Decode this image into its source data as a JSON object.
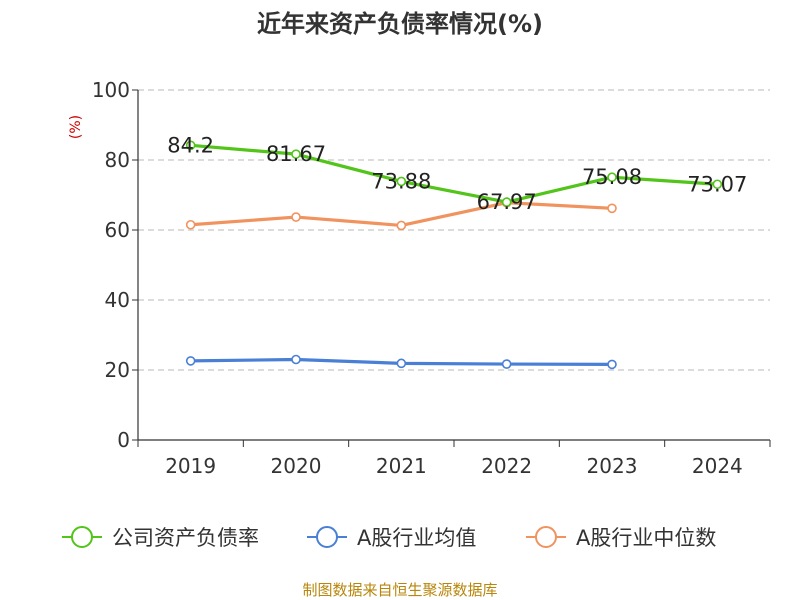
{
  "chart_data": {
    "type": "line",
    "title": "近年来资产负债率情况(%)",
    "ylabel": "(%)",
    "xlabel": "",
    "ylim": [
      0,
      100
    ],
    "yticks": [
      0,
      20,
      40,
      60,
      80,
      100
    ],
    "grid": true,
    "legend_position": "bottom",
    "categories": [
      "2019",
      "2020",
      "2021",
      "2022",
      "2023",
      "2024"
    ],
    "series": [
      {
        "name": "公司资产负债率",
        "color": "#52c41a",
        "values": [
          84.2,
          81.67,
          73.88,
          67.97,
          75.08,
          73.07
        ],
        "labels": [
          "84.2",
          "81.67",
          "73.88",
          "67.97",
          "75.08",
          "73.07"
        ]
      },
      {
        "name": "A股行业均值",
        "color": "#4a7fd6",
        "values": [
          22.6,
          23.0,
          21.9,
          21.7,
          21.6,
          null
        ]
      },
      {
        "name": "A股行业中位数",
        "color": "#f0935e",
        "values": [
          61.5,
          63.7,
          61.3,
          67.8,
          66.2,
          null
        ]
      }
    ],
    "source": "制图数据来自恒生聚源数据库"
  }
}
